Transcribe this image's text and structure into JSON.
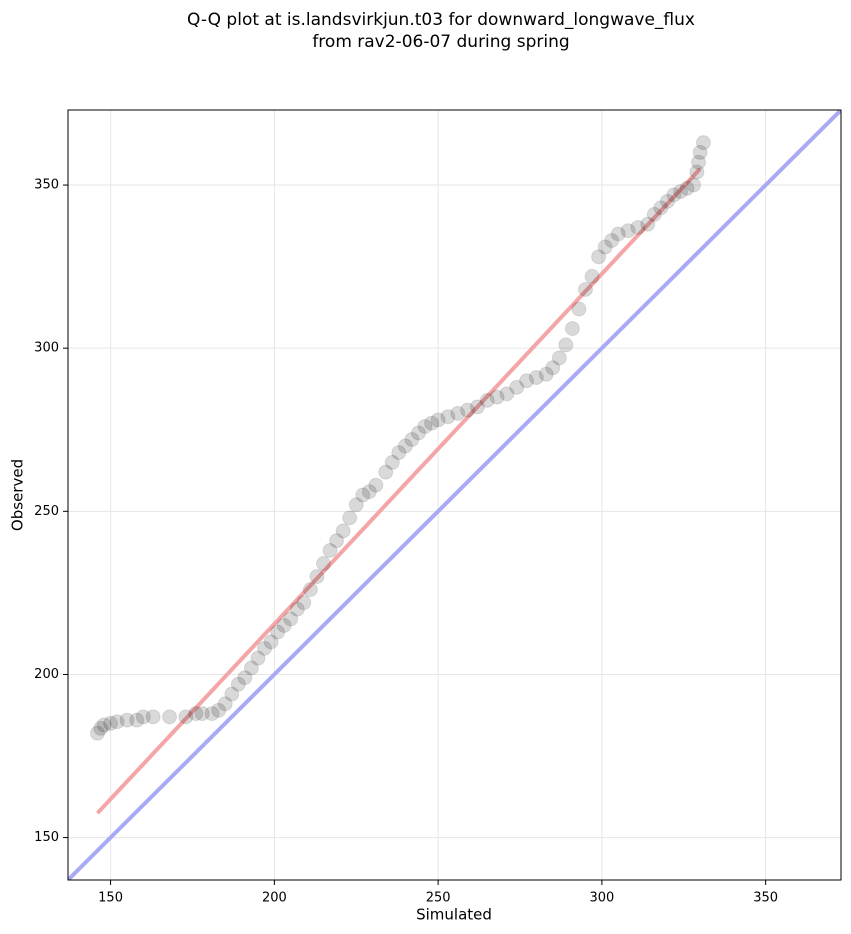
{
  "chart_data": {
    "type": "scatter",
    "title": [
      "Q-Q plot at is.landsvirkjun.t03 for downward_longwave_flux",
      "from rav2-06-07 during spring"
    ],
    "x_label": "Simulated",
    "y_label": "Observed",
    "xlim": [
      137,
      373
    ],
    "ylim": [
      137,
      373
    ],
    "xticks": [
      150,
      200,
      250,
      300,
      350
    ],
    "yticks": [
      150,
      200,
      250,
      300,
      350
    ],
    "grid": true,
    "points": {
      "color": "#000000",
      "x": [
        146,
        147,
        148,
        150,
        152,
        155,
        158,
        160,
        163,
        168,
        173,
        176,
        178,
        181,
        183,
        185,
        187,
        189,
        191,
        193,
        195,
        197,
        199,
        201,
        203,
        205,
        207,
        209,
        211,
        213,
        215,
        217,
        219,
        221,
        223,
        225,
        227,
        229,
        231,
        234,
        236,
        238,
        240,
        242,
        244,
        246,
        248,
        250,
        253,
        256,
        259,
        262,
        265,
        268,
        271,
        274,
        277,
        280,
        283,
        285,
        287,
        289,
        291,
        293,
        295,
        297,
        299,
        301,
        303,
        305,
        308,
        311,
        314,
        316,
        318,
        320,
        322,
        324,
        326,
        328,
        329,
        329.5,
        330,
        331
      ],
      "values": [
        182,
        183.5,
        184.5,
        185,
        185.5,
        186,
        186,
        187,
        187,
        187,
        187,
        188,
        188,
        188,
        189,
        191,
        194,
        197,
        199,
        202,
        205,
        208,
        210,
        213,
        215,
        217,
        220,
        222,
        226,
        230,
        234,
        238,
        241,
        244,
        248,
        252,
        255,
        256,
        258,
        262,
        265,
        268,
        270,
        272,
        274,
        276,
        277,
        278,
        279,
        280,
        281,
        282,
        284,
        285,
        286,
        288,
        290,
        291,
        292,
        294,
        297,
        301,
        306,
        312,
        318,
        322,
        328,
        331,
        333,
        335,
        336,
        337,
        338,
        341,
        343,
        345,
        347,
        348,
        349,
        350,
        354,
        357,
        360,
        363
      ]
    },
    "lines": [
      {
        "color": "#f4a6a6",
        "x": [
          146,
          330
        ],
        "values": [
          157.5,
          355
        ]
      },
      {
        "color": "#a9a9f5",
        "x": [
          137,
          373
        ],
        "values": [
          137,
          373
        ]
      }
    ]
  }
}
